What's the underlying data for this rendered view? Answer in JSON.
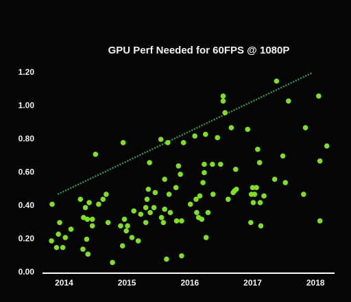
{
  "chart_data": {
    "type": "scatter",
    "title": "GPU Perf Needed for 60FPS @ 1080P",
    "color": "#7fe01e",
    "x": [
      2013.81,
      2013.8,
      2013.88,
      2013.93,
      2013.91,
      2013.98,
      2014.02,
      2014.11,
      2014.26,
      2014.34,
      2014.4,
      2014.31,
      2014.37,
      2014.45,
      2014.5,
      2014.55,
      2014.62,
      2014.67,
      2014.36,
      2014.3,
      2014.38,
      2014.45,
      2014.7,
      2014.77,
      2014.9,
      2014.94,
      2014.96,
      2014.99,
      2015.01,
      2015.08,
      2015.11,
      2014.93,
      2015.18,
      2015.22,
      2015.3,
      2015.3,
      2015.32,
      2015.34,
      2015.36,
      2015.37,
      2015.43,
      2015.45,
      2015.54,
      2015.55,
      2015.58,
      2015.6,
      2015.6,
      2015.63,
      2015.65,
      2015.67,
      2015.69,
      2015.79,
      2015.78,
      2015.82,
      2015.85,
      2015.87,
      2015.9,
      2015.87,
      2016.01,
      2016.08,
      2016.1,
      2016.11,
      2016.14,
      2016.16,
      2016.19,
      2016.21,
      2016.23,
      2016.23,
      2016.25,
      2016.26,
      2016.29,
      2016.36,
      2016.37,
      2016.44,
      2016.49,
      2016.53,
      2016.53,
      2016.56,
      2016.61,
      2016.66,
      2016.69,
      2016.71,
      2016.73,
      2016.74,
      2016.92,
      2016.98,
      2016.97,
      2017.0,
      2017.01,
      2017.03,
      2017.06,
      2017.08,
      2017.11,
      2017.12,
      2017.13,
      2017.18,
      2017.35,
      2017.38,
      2017.48,
      2017.52,
      2017.57,
      2017.81,
      2017.84,
      2018.05,
      2018.07,
      2018.07,
      2018.18
    ],
    "values": [
      0.41,
      0.19,
      0.15,
      0.3,
      0.23,
      0.15,
      0.21,
      0.26,
      0.44,
      0.39,
      0.42,
      0.33,
      0.32,
      0.32,
      0.71,
      0.41,
      0.44,
      0.47,
      0.2,
      0.14,
      0.11,
      0.28,
      0.3,
      0.06,
      0.28,
      0.78,
      0.32,
      0.25,
      0.28,
      0.21,
      0.37,
      0.16,
      0.19,
      0.35,
      0.3,
      0.39,
      0.44,
      0.5,
      0.66,
      0.36,
      0.39,
      0.48,
      0.8,
      0.33,
      0.3,
      0.38,
      0.56,
      0.08,
      0.78,
      0.47,
      0.36,
      0.31,
      0.51,
      0.64,
      0.59,
      0.1,
      0.78,
      0.31,
      0.41,
      0.82,
      0.44,
      0.36,
      0.33,
      0.46,
      0.32,
      0.54,
      0.65,
      0.6,
      0.83,
      0.21,
      0.36,
      0.65,
      0.47,
      0.81,
      0.65,
      1.06,
      1.03,
      0.96,
      0.44,
      0.87,
      0.48,
      0.49,
      0.62,
      0.5,
      0.86,
      0.47,
      0.3,
      0.51,
      0.42,
      0.47,
      0.51,
      0.74,
      0.66,
      0.42,
      0.28,
      0.46,
      0.56,
      1.15,
      0.7,
      0.54,
      1.03,
      0.47,
      0.87,
      1.06,
      0.67,
      0.31,
      0.76
    ],
    "trend_line": {
      "x": [
        2013.9,
        2017.95
      ],
      "values": [
        0.47,
        1.2
      ],
      "color": "#2a9a55"
    },
    "xlim": [
      2013.69,
      2018.27
    ],
    "ylim": [
      0,
      1.2
    ],
    "xticks": [
      2014,
      2015,
      2016,
      2017,
      2018
    ],
    "yticks": [
      {
        "value": 0,
        "label": "0.00"
      },
      {
        "value": 0.2,
        "label": "0.20"
      },
      {
        "value": 0.4,
        "label": "0.40"
      },
      {
        "value": 0.6,
        "label": "0.60"
      },
      {
        "value": 0.8,
        "label": "0.80"
      },
      {
        "value": 1.0,
        "label": "1.00"
      },
      {
        "value": 1.2,
        "label": "1.20"
      }
    ]
  }
}
